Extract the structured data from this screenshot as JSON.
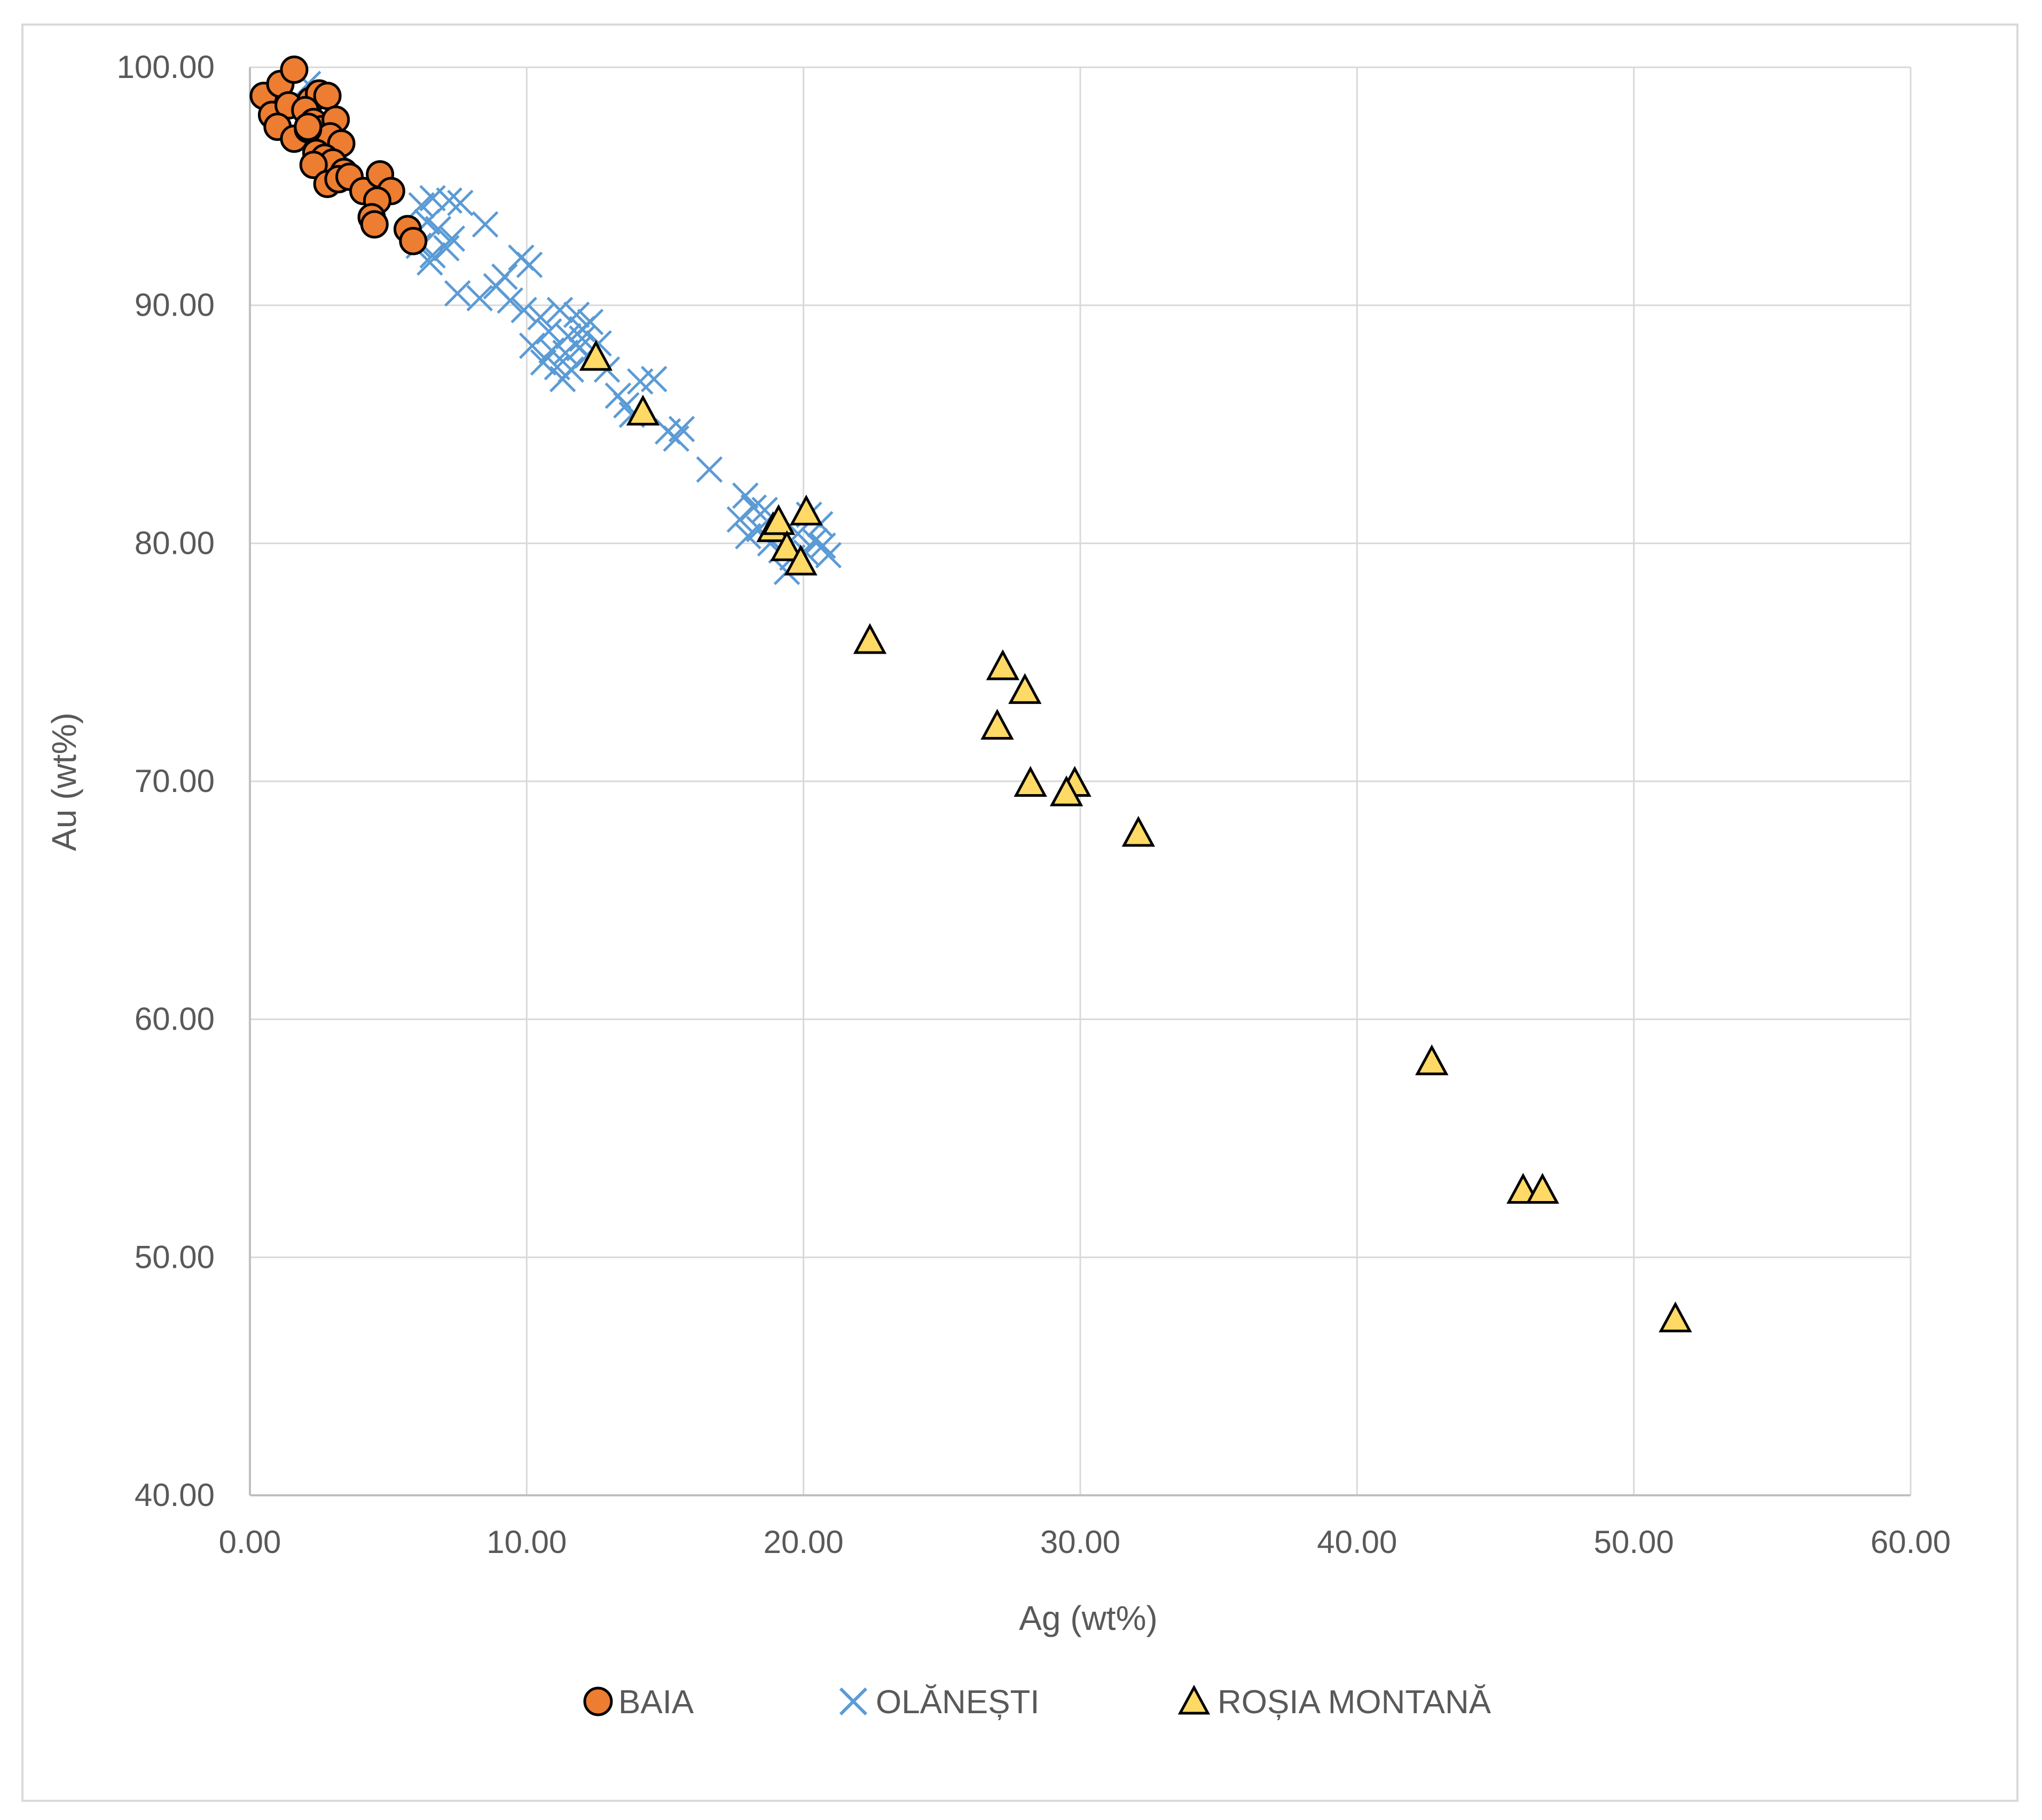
{
  "chart_data": {
    "type": "scatter",
    "title": "",
    "xlabel": "Ag (wt%)",
    "ylabel": "Au (wt%)",
    "xlim": [
      0,
      60
    ],
    "ylim": [
      40,
      100
    ],
    "x_ticks": [
      "0.00",
      "10.00",
      "20.00",
      "30.00",
      "40.00",
      "50.00",
      "60.00"
    ],
    "y_ticks": [
      "40.00",
      "50.00",
      "60.00",
      "70.00",
      "80.00",
      "90.00",
      "100.00"
    ],
    "grid": true,
    "legend_position": "bottom",
    "series": [
      {
        "name": "BAIA",
        "marker": "circle",
        "color": "#ED7D31",
        "stroke": "#000000",
        "points": [
          [
            0.5,
            98.8
          ],
          [
            1.1,
            99.3
          ],
          [
            1.6,
            99.9
          ],
          [
            0.8,
            98.0
          ],
          [
            1.4,
            98.4
          ],
          [
            1.0,
            97.5
          ],
          [
            1.6,
            97.0
          ],
          [
            2.2,
            98.6
          ],
          [
            2.5,
            98.9
          ],
          [
            2.8,
            98.8
          ],
          [
            2.0,
            98.2
          ],
          [
            2.3,
            97.7
          ],
          [
            2.6,
            97.4
          ],
          [
            3.1,
            97.8
          ],
          [
            2.9,
            97.1
          ],
          [
            3.3,
            96.8
          ],
          [
            2.1,
            97.4
          ],
          [
            2.4,
            96.4
          ],
          [
            2.7,
            96.2
          ],
          [
            3.0,
            96.0
          ],
          [
            3.4,
            95.6
          ],
          [
            2.3,
            95.9
          ],
          [
            2.8,
            95.1
          ],
          [
            3.2,
            95.3
          ],
          [
            3.6,
            95.4
          ],
          [
            4.1,
            94.8
          ],
          [
            4.7,
            95.5
          ],
          [
            5.1,
            94.8
          ],
          [
            4.6,
            94.4
          ],
          [
            4.4,
            93.7
          ],
          [
            4.5,
            93.4
          ],
          [
            5.7,
            93.2
          ],
          [
            5.9,
            92.7
          ],
          [
            2.1,
            97.5
          ]
        ]
      },
      {
        "name": "OLĂNEȘTI",
        "marker": "cross",
        "color": "#5B9BD5",
        "points": [
          [
            2.1,
            99.3
          ],
          [
            2.6,
            96.2
          ],
          [
            3.0,
            96.0
          ],
          [
            2.8,
            95.6
          ],
          [
            3.3,
            96.4
          ],
          [
            6.2,
            94.2
          ],
          [
            6.6,
            94.5
          ],
          [
            7.2,
            94.4
          ],
          [
            7.6,
            94.3
          ],
          [
            6.4,
            93.5
          ],
          [
            6.8,
            93.2
          ],
          [
            7.3,
            92.8
          ],
          [
            8.5,
            93.4
          ],
          [
            6.1,
            92.5
          ],
          [
            6.6,
            92.1
          ],
          [
            7.1,
            92.4
          ],
          [
            6.5,
            91.8
          ],
          [
            9.2,
            91.2
          ],
          [
            9.8,
            92.0
          ],
          [
            10.1,
            91.7
          ],
          [
            8.9,
            90.8
          ],
          [
            9.4,
            90.2
          ],
          [
            7.5,
            90.5
          ],
          [
            8.3,
            90.3
          ],
          [
            9.9,
            89.8
          ],
          [
            10.5,
            89.5
          ],
          [
            11.2,
            89.8
          ],
          [
            11.8,
            89.6
          ],
          [
            12.3,
            89.3
          ],
          [
            10.8,
            88.9
          ],
          [
            11.5,
            88.7
          ],
          [
            12.0,
            88.6
          ],
          [
            12.6,
            88.4
          ],
          [
            10.2,
            88.3
          ],
          [
            10.9,
            88.1
          ],
          [
            11.4,
            88.0
          ],
          [
            11.9,
            88.2
          ],
          [
            12.2,
            87.9
          ],
          [
            10.6,
            87.6
          ],
          [
            11.1,
            87.4
          ],
          [
            11.6,
            87.3
          ],
          [
            11.3,
            86.9
          ],
          [
            12.9,
            87.3
          ],
          [
            13.3,
            86.2
          ],
          [
            13.6,
            85.8
          ],
          [
            14.1,
            86.8
          ],
          [
            14.6,
            86.9
          ],
          [
            13.8,
            85.4
          ],
          [
            15.1,
            84.7
          ],
          [
            15.4,
            84.4
          ],
          [
            15.6,
            84.8
          ],
          [
            16.6,
            83.1
          ],
          [
            17.9,
            82.0
          ],
          [
            18.2,
            81.5
          ],
          [
            17.7,
            81.0
          ],
          [
            18.4,
            80.6
          ],
          [
            18.0,
            80.3
          ],
          [
            18.8,
            80.0
          ],
          [
            19.2,
            79.7
          ],
          [
            19.6,
            79.4
          ],
          [
            20.1,
            79.6
          ],
          [
            20.4,
            80.1
          ],
          [
            20.7,
            79.9
          ],
          [
            20.9,
            79.5
          ],
          [
            19.4,
            78.8
          ],
          [
            20.2,
            81.2
          ],
          [
            18.6,
            81.4
          ],
          [
            19.8,
            80.4
          ],
          [
            20.6,
            80.8
          ],
          [
            12.0,
            89.0
          ]
        ]
      },
      {
        "name": "ROȘIA MONTANĂ",
        "marker": "triangle",
        "color": "#FFD966",
        "stroke": "#000000",
        "points": [
          [
            12.5,
            87.8
          ],
          [
            14.2,
            85.5
          ],
          [
            18.9,
            80.6
          ],
          [
            19.1,
            80.9
          ],
          [
            20.1,
            81.3
          ],
          [
            19.4,
            79.8
          ],
          [
            19.9,
            79.2
          ],
          [
            22.4,
            75.9
          ],
          [
            27.2,
            74.8
          ],
          [
            28.0,
            73.8
          ],
          [
            27.0,
            72.3
          ],
          [
            28.2,
            69.9
          ],
          [
            29.8,
            69.9
          ],
          [
            29.5,
            69.5
          ],
          [
            32.1,
            67.8
          ],
          [
            42.7,
            58.2
          ],
          [
            46.0,
            52.8
          ],
          [
            46.7,
            52.8
          ],
          [
            51.5,
            47.4
          ]
        ]
      }
    ]
  }
}
